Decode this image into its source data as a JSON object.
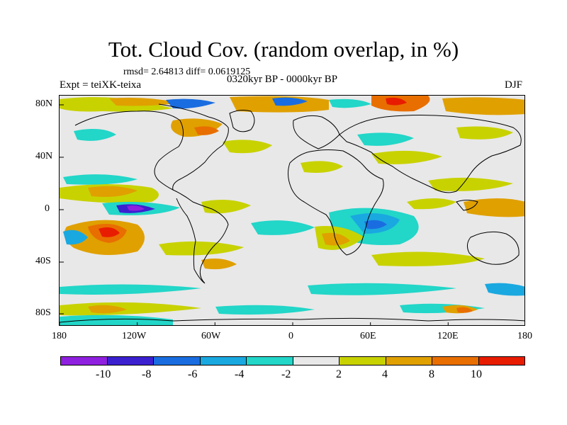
{
  "header": {
    "title": "Tot. Cloud Cov. (random overlap, in %)",
    "stats": "rmsd= 2.64813 diff= 0.0619125",
    "expt": "Expt = teiXK-teixa",
    "period": "0320kyr BP - 0000kyr BP",
    "season": "DJF"
  },
  "map": {
    "lat_labels": [
      "80N",
      "40N",
      "0",
      "40S",
      "80S"
    ],
    "lon_labels": [
      "180",
      "120W",
      "60W",
      "0",
      "60E",
      "120E",
      "180"
    ],
    "background_color": "#e8e8e8"
  },
  "colorbar": {
    "colors": [
      "#8f20e0",
      "#3b20d0",
      "#1a6de0",
      "#1aa8e0",
      "#22d6c8",
      "#e8e8e8",
      "#c8d200",
      "#e0a000",
      "#e86e00",
      "#e81c00"
    ],
    "labels": [
      "-10",
      "-8",
      "-6",
      "-4",
      "-2",
      "2",
      "4",
      "8",
      "10"
    ]
  }
}
